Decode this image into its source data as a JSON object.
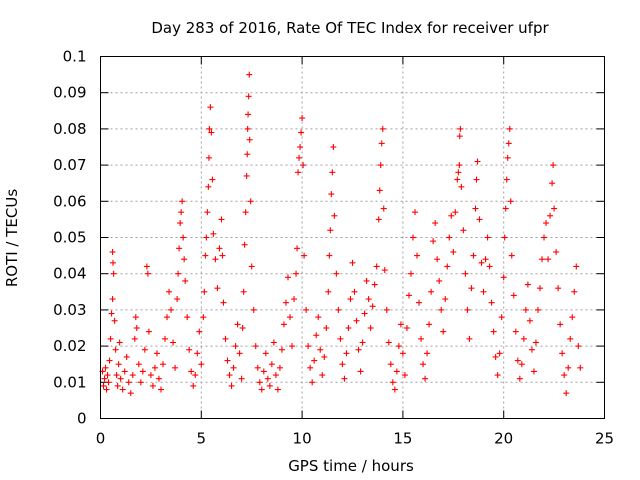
{
  "chart_data": {
    "type": "scatter",
    "title": "Day 283 of 2016, Rate Of TEC Index for receiver ufpr",
    "xlabel": "GPS time / hours",
    "ylabel": "ROTI / TECUs",
    "xlim": [
      0,
      25
    ],
    "ylim": [
      0,
      0.1
    ],
    "x_ticks": [
      0,
      5,
      10,
      15,
      20,
      25
    ],
    "x_tick_labels": [
      "0",
      "5",
      "10",
      "15",
      "20",
      "25"
    ],
    "y_ticks": [
      0,
      0.01,
      0.02,
      0.03,
      0.04,
      0.05,
      0.06,
      0.07,
      0.08,
      0.09,
      0.1
    ],
    "y_tick_labels": [
      "0",
      "0.01",
      "0.02",
      "0.03",
      "0.04",
      "0.05",
      "0.06",
      "0.07",
      "0.08",
      "0.09",
      "0.1"
    ],
    "grid": true,
    "marker": "+",
    "marker_color": "#ff0000",
    "series": [
      {
        "name": "ROTI",
        "points": [
          [
            0.1,
            0.013
          ],
          [
            0.15,
            0.009
          ],
          [
            0.2,
            0.011
          ],
          [
            0.25,
            0.014
          ],
          [
            0.3,
            0.008
          ],
          [
            0.35,
            0.012
          ],
          [
            0.4,
            0.01
          ],
          [
            0.45,
            0.016
          ],
          [
            0.5,
            0.022
          ],
          [
            0.55,
            0.029
          ],
          [
            0.6,
            0.033
          ],
          [
            0.6,
            0.046
          ],
          [
            0.62,
            0.043
          ],
          [
            0.65,
            0.04
          ],
          [
            0.7,
            0.027
          ],
          [
            0.75,
            0.019
          ],
          [
            0.8,
            0.012
          ],
          [
            0.85,
            0.009
          ],
          [
            0.9,
            0.015
          ],
          [
            0.95,
            0.021
          ],
          [
            1.0,
            0.011
          ],
          [
            1.1,
            0.008
          ],
          [
            1.2,
            0.013
          ],
          [
            1.3,
            0.017
          ],
          [
            1.4,
            0.01
          ],
          [
            1.5,
            0.007
          ],
          [
            1.6,
            0.012
          ],
          [
            1.7,
            0.022
          ],
          [
            1.75,
            0.028
          ],
          [
            1.8,
            0.025
          ],
          [
            1.9,
            0.015
          ],
          [
            2.0,
            0.01
          ],
          [
            2.1,
            0.013
          ],
          [
            2.2,
            0.019
          ],
          [
            2.3,
            0.042
          ],
          [
            2.35,
            0.04
          ],
          [
            2.4,
            0.024
          ],
          [
            2.5,
            0.012
          ],
          [
            2.6,
            0.009
          ],
          [
            2.7,
            0.014
          ],
          [
            2.8,
            0.018
          ],
          [
            2.9,
            0.011
          ],
          [
            3.0,
            0.008
          ],
          [
            3.1,
            0.015
          ],
          [
            3.2,
            0.022
          ],
          [
            3.3,
            0.028
          ],
          [
            3.4,
            0.035
          ],
          [
            3.5,
            0.03
          ],
          [
            3.6,
            0.021
          ],
          [
            3.7,
            0.014
          ],
          [
            3.8,
            0.033
          ],
          [
            3.85,
            0.04
          ],
          [
            3.9,
            0.047
          ],
          [
            3.95,
            0.054
          ],
          [
            4.0,
            0.057
          ],
          [
            4.05,
            0.06
          ],
          [
            4.1,
            0.05
          ],
          [
            4.15,
            0.044
          ],
          [
            4.2,
            0.038
          ],
          [
            4.3,
            0.028
          ],
          [
            4.4,
            0.019
          ],
          [
            4.5,
            0.013
          ],
          [
            4.6,
            0.009
          ],
          [
            4.7,
            0.012
          ],
          [
            4.8,
            0.018
          ],
          [
            4.9,
            0.024
          ],
          [
            5.0,
            0.015
          ],
          [
            5.1,
            0.028
          ],
          [
            5.15,
            0.035
          ],
          [
            5.2,
            0.045
          ],
          [
            5.25,
            0.05
          ],
          [
            5.3,
            0.057
          ],
          [
            5.35,
            0.064
          ],
          [
            5.38,
            0.072
          ],
          [
            5.4,
            0.08
          ],
          [
            5.45,
            0.086
          ],
          [
            5.5,
            0.079
          ],
          [
            5.55,
            0.066
          ],
          [
            5.6,
            0.051
          ],
          [
            5.7,
            0.044
          ],
          [
            5.8,
            0.036
          ],
          [
            5.9,
            0.047
          ],
          [
            6.0,
            0.055
          ],
          [
            6.05,
            0.045
          ],
          [
            6.1,
            0.032
          ],
          [
            6.2,
            0.022
          ],
          [
            6.3,
            0.016
          ],
          [
            6.4,
            0.012
          ],
          [
            6.5,
            0.009
          ],
          [
            6.6,
            0.014
          ],
          [
            6.7,
            0.02
          ],
          [
            6.8,
            0.026
          ],
          [
            6.9,
            0.018
          ],
          [
            7.0,
            0.011
          ],
          [
            7.05,
            0.025
          ],
          [
            7.1,
            0.035
          ],
          [
            7.15,
            0.048
          ],
          [
            7.2,
            0.057
          ],
          [
            7.25,
            0.067
          ],
          [
            7.28,
            0.073
          ],
          [
            7.3,
            0.08
          ],
          [
            7.32,
            0.084
          ],
          [
            7.35,
            0.089
          ],
          [
            7.38,
            0.095
          ],
          [
            7.4,
            0.077
          ],
          [
            7.45,
            0.06
          ],
          [
            7.5,
            0.042
          ],
          [
            7.6,
            0.03
          ],
          [
            7.7,
            0.02
          ],
          [
            7.8,
            0.014
          ],
          [
            7.9,
            0.01
          ],
          [
            8.0,
            0.008
          ],
          [
            8.1,
            0.013
          ],
          [
            8.2,
            0.018
          ],
          [
            8.3,
            0.011
          ],
          [
            8.4,
            0.009
          ],
          [
            8.5,
            0.015
          ],
          [
            8.6,
            0.021
          ],
          [
            8.7,
            0.012
          ],
          [
            8.8,
            0.008
          ],
          [
            8.9,
            0.014
          ],
          [
            9.0,
            0.019
          ],
          [
            9.1,
            0.026
          ],
          [
            9.2,
            0.032
          ],
          [
            9.3,
            0.039
          ],
          [
            9.4,
            0.028
          ],
          [
            9.5,
            0.02
          ],
          [
            9.6,
            0.033
          ],
          [
            9.7,
            0.04
          ],
          [
            9.75,
            0.047
          ],
          [
            9.8,
            0.068
          ],
          [
            9.85,
            0.072
          ],
          [
            9.9,
            0.075
          ],
          [
            9.95,
            0.079
          ],
          [
            10.0,
            0.083
          ],
          [
            10.05,
            0.07
          ],
          [
            10.1,
            0.045
          ],
          [
            10.2,
            0.03
          ],
          [
            10.3,
            0.02
          ],
          [
            10.4,
            0.014
          ],
          [
            10.5,
            0.01
          ],
          [
            10.6,
            0.016
          ],
          [
            10.7,
            0.023
          ],
          [
            10.8,
            0.028
          ],
          [
            10.9,
            0.019
          ],
          [
            11.0,
            0.012
          ],
          [
            11.1,
            0.017
          ],
          [
            11.2,
            0.025
          ],
          [
            11.3,
            0.035
          ],
          [
            11.35,
            0.045
          ],
          [
            11.4,
            0.052
          ],
          [
            11.45,
            0.062
          ],
          [
            11.5,
            0.068
          ],
          [
            11.55,
            0.075
          ],
          [
            11.6,
            0.056
          ],
          [
            11.7,
            0.04
          ],
          [
            11.8,
            0.03
          ],
          [
            11.9,
            0.022
          ],
          [
            12.0,
            0.015
          ],
          [
            12.1,
            0.011
          ],
          [
            12.2,
            0.018
          ],
          [
            12.3,
            0.025
          ],
          [
            12.4,
            0.033
          ],
          [
            12.5,
            0.043
          ],
          [
            12.6,
            0.035
          ],
          [
            12.7,
            0.027
          ],
          [
            12.8,
            0.019
          ],
          [
            12.9,
            0.013
          ],
          [
            13.0,
            0.021
          ],
          [
            13.1,
            0.029
          ],
          [
            13.2,
            0.038
          ],
          [
            13.3,
            0.033
          ],
          [
            13.4,
            0.025
          ],
          [
            13.5,
            0.031
          ],
          [
            13.6,
            0.037
          ],
          [
            13.7,
            0.042
          ],
          [
            13.8,
            0.055
          ],
          [
            13.85,
            0.063
          ],
          [
            13.9,
            0.07
          ],
          [
            13.95,
            0.076
          ],
          [
            14.0,
            0.08
          ],
          [
            14.05,
            0.058
          ],
          [
            14.1,
            0.041
          ],
          [
            14.2,
            0.03
          ],
          [
            14.3,
            0.021
          ],
          [
            14.4,
            0.015
          ],
          [
            14.5,
            0.01
          ],
          [
            14.6,
            0.008
          ],
          [
            14.7,
            0.013
          ],
          [
            14.8,
            0.02
          ],
          [
            14.9,
            0.026
          ],
          [
            15.0,
            0.018
          ],
          [
            15.1,
            0.012
          ],
          [
            15.2,
            0.025
          ],
          [
            15.3,
            0.034
          ],
          [
            15.4,
            0.04
          ],
          [
            15.5,
            0.05
          ],
          [
            15.6,
            0.057
          ],
          [
            15.7,
            0.045
          ],
          [
            15.8,
            0.032
          ],
          [
            15.9,
            0.022
          ],
          [
            16.0,
            0.015
          ],
          [
            16.1,
            0.011
          ],
          [
            16.2,
            0.018
          ],
          [
            16.3,
            0.026
          ],
          [
            16.4,
            0.035
          ],
          [
            16.5,
            0.049
          ],
          [
            16.6,
            0.054
          ],
          [
            16.7,
            0.044
          ],
          [
            16.8,
            0.038
          ],
          [
            16.9,
            0.03
          ],
          [
            17.0,
            0.024
          ],
          [
            17.1,
            0.033
          ],
          [
            17.2,
            0.042
          ],
          [
            17.3,
            0.05
          ],
          [
            17.4,
            0.056
          ],
          [
            17.5,
            0.046
          ],
          [
            17.6,
            0.057
          ],
          [
            17.7,
            0.066
          ],
          [
            17.75,
            0.068
          ],
          [
            17.8,
            0.07
          ],
          [
            17.82,
            0.078
          ],
          [
            17.85,
            0.08
          ],
          [
            17.9,
            0.064
          ],
          [
            18.0,
            0.052
          ],
          [
            18.1,
            0.04
          ],
          [
            18.2,
            0.03
          ],
          [
            18.3,
            0.022
          ],
          [
            18.4,
            0.036
          ],
          [
            18.5,
            0.045
          ],
          [
            18.6,
            0.058
          ],
          [
            18.65,
            0.066
          ],
          [
            18.7,
            0.071
          ],
          [
            18.8,
            0.055
          ],
          [
            18.9,
            0.043
          ],
          [
            19.0,
            0.035
          ],
          [
            19.1,
            0.044
          ],
          [
            19.2,
            0.05
          ],
          [
            19.3,
            0.042
          ],
          [
            19.4,
            0.032
          ],
          [
            19.5,
            0.024
          ],
          [
            19.6,
            0.017
          ],
          [
            19.7,
            0.012
          ],
          [
            19.8,
            0.018
          ],
          [
            19.9,
            0.028
          ],
          [
            20.0,
            0.039
          ],
          [
            20.05,
            0.05
          ],
          [
            20.1,
            0.058
          ],
          [
            20.15,
            0.066
          ],
          [
            20.2,
            0.072
          ],
          [
            20.25,
            0.076
          ],
          [
            20.3,
            0.08
          ],
          [
            20.35,
            0.06
          ],
          [
            20.4,
            0.045
          ],
          [
            20.5,
            0.034
          ],
          [
            20.6,
            0.024
          ],
          [
            20.7,
            0.016
          ],
          [
            20.8,
            0.011
          ],
          [
            20.9,
            0.015
          ],
          [
            21.0,
            0.022
          ],
          [
            21.1,
            0.03
          ],
          [
            21.2,
            0.037
          ],
          [
            21.3,
            0.027
          ],
          [
            21.4,
            0.019
          ],
          [
            21.5,
            0.013
          ],
          [
            21.6,
            0.021
          ],
          [
            21.7,
            0.03
          ],
          [
            21.8,
            0.036
          ],
          [
            21.9,
            0.044
          ],
          [
            22.0,
            0.05
          ],
          [
            22.1,
            0.054
          ],
          [
            22.2,
            0.044
          ],
          [
            22.3,
            0.056
          ],
          [
            22.4,
            0.065
          ],
          [
            22.45,
            0.07
          ],
          [
            22.5,
            0.058
          ],
          [
            22.6,
            0.046
          ],
          [
            22.7,
            0.036
          ],
          [
            22.8,
            0.026
          ],
          [
            22.9,
            0.018
          ],
          [
            23.0,
            0.012
          ],
          [
            23.1,
            0.007
          ],
          [
            23.2,
            0.014
          ],
          [
            23.3,
            0.022
          ],
          [
            23.4,
            0.028
          ],
          [
            23.5,
            0.035
          ],
          [
            23.6,
            0.042
          ],
          [
            23.7,
            0.02
          ],
          [
            23.8,
            0.014
          ]
        ]
      }
    ]
  }
}
